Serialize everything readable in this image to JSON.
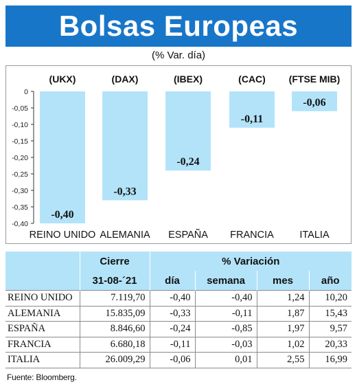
{
  "title": "Bolsas Europeas",
  "subtitle": "(% Var. día)",
  "chart_data": {
    "type": "bar",
    "codes": [
      "(UKX)",
      "(DAX)",
      "(IBEX)",
      "(CAC)",
      "(FTSE MIB)"
    ],
    "categories": [
      "REINO UNIDO",
      "ALEMANIA",
      "ESPAÑA",
      "FRANCIA",
      "ITALIA"
    ],
    "values": [
      -0.4,
      -0.33,
      -0.24,
      -0.11,
      -0.06
    ],
    "value_labels": [
      "-0,40",
      "-0,33",
      "-0,24",
      "-0,11",
      "-0,06"
    ],
    "ylim": [
      -0.4,
      0
    ],
    "yticks": [
      0,
      -0.05,
      -0.1,
      -0.15,
      -0.2,
      -0.25,
      -0.3,
      -0.35,
      -0.4
    ],
    "ytick_labels": [
      "0",
      "-0,05",
      "-0,10",
      "-0,15",
      "-0,20",
      "-0,25",
      "-0,30",
      "-0,35",
      "-0,40"
    ],
    "grid": false,
    "bar_color": "#b3e3f9"
  },
  "table": {
    "group_headers": [
      "Cierre",
      "% Variación"
    ],
    "date_header": "31-08-´21",
    "sub_headers": [
      "día",
      "semana",
      "mes",
      "año"
    ],
    "rows": [
      [
        "REINO UNIDO",
        "7.119,70",
        "-0,40",
        "-0,40",
        "1,24",
        "10,20"
      ],
      [
        "ALEMANIA",
        "15.835,09",
        "-0,33",
        "-0,11",
        "1,87",
        "15,43"
      ],
      [
        "ESPAÑA",
        "8.846,60",
        "-0,24",
        "-0,85",
        "1,97",
        "9,57"
      ],
      [
        "FRANCIA",
        "6.680,18",
        "-0,11",
        "-0,03",
        "1,02",
        "20,33"
      ],
      [
        "ITALIA",
        "26.009,29",
        "-0,06",
        "0,01",
        "2,55",
        "16,99"
      ]
    ]
  },
  "source": "Fuente: Bloomberg."
}
